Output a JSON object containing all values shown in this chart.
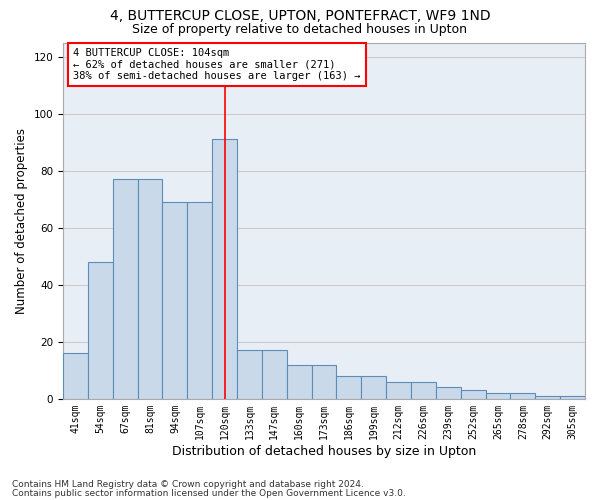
{
  "title1": "4, BUTTERCUP CLOSE, UPTON, PONTEFRACT, WF9 1ND",
  "title2": "Size of property relative to detached houses in Upton",
  "xlabel": "Distribution of detached houses by size in Upton",
  "ylabel": "Number of detached properties",
  "categories": [
    "41sqm",
    "54sqm",
    "67sqm",
    "81sqm",
    "94sqm",
    "107sqm",
    "120sqm",
    "133sqm",
    "147sqm",
    "160sqm",
    "173sqm",
    "186sqm",
    "199sqm",
    "212sqm",
    "226sqm",
    "239sqm",
    "252sqm",
    "265sqm",
    "278sqm",
    "292sqm",
    "305sqm"
  ],
  "bar_values": [
    16,
    48,
    77,
    77,
    69,
    69,
    91,
    17,
    17,
    12,
    12,
    8,
    8,
    6,
    6,
    4,
    3,
    2,
    2,
    1,
    1
  ],
  "bar_color": "#c9d9ea",
  "bar_edge_color": "#5b8db8",
  "bar_linewidth": 0.8,
  "vline_x": 6.0,
  "vline_color": "red",
  "annotation_text": "4 BUTTERCUP CLOSE: 104sqm\n← 62% of detached houses are smaller (271)\n38% of semi-detached houses are larger (163) →",
  "annotation_box_color": "white",
  "annotation_box_edge": "red",
  "ylim": [
    0,
    125
  ],
  "yticks": [
    0,
    20,
    40,
    60,
    80,
    100,
    120
  ],
  "grid_color": "#cccccc",
  "bg_color": "#e8eef5",
  "footer1": "Contains HM Land Registry data © Crown copyright and database right 2024.",
  "footer2": "Contains public sector information licensed under the Open Government Licence v3.0.",
  "title1_fontsize": 10,
  "title2_fontsize": 9,
  "axis_label_fontsize": 8.5,
  "tick_fontsize": 7,
  "annotation_fontsize": 7.5,
  "footer_fontsize": 6.5
}
